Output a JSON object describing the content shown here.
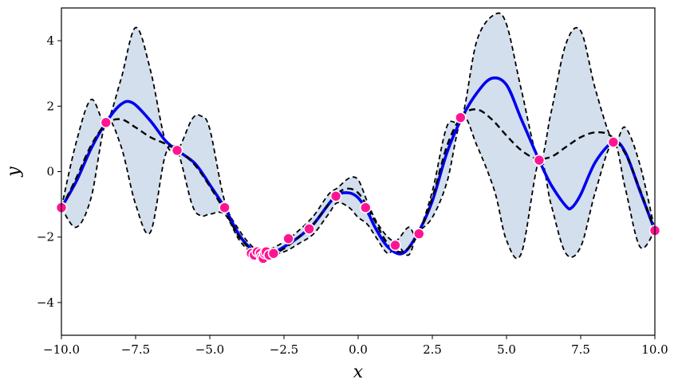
{
  "chart_data": {
    "type": "line",
    "xlabel": "x",
    "ylabel": "y",
    "xlim": [
      -10,
      10
    ],
    "ylim": [
      -5,
      5
    ],
    "xticks": [
      -10,
      -7.5,
      -5,
      -2.5,
      0,
      2.5,
      5,
      7.5,
      10
    ],
    "xtick_labels": [
      "−10.0",
      "−7.5",
      "−5.0",
      "−2.5",
      "0.0",
      "2.5",
      "5.0",
      "7.5",
      "10.0"
    ],
    "yticks": [
      -4,
      -2,
      0,
      2,
      4
    ],
    "ytick_labels": [
      "−4",
      "−2",
      "0",
      "2",
      "4"
    ],
    "grid": false,
    "colors": {
      "mean": "#0000ee",
      "true_function": "#000000",
      "confidence_band": "#d3dfec",
      "observations": "#ff1493",
      "observation_edge": "#ffffff"
    },
    "series": [
      {
        "role": "posterior-mean",
        "style": "solid",
        "x": [
          -10,
          -9.5,
          -9,
          -8.5,
          -8,
          -7.6,
          -7,
          -6.5,
          -6.1,
          -5.5,
          -5,
          -4.5,
          -4,
          -3.5,
          -3.2,
          -3,
          -2.5,
          -2,
          -1.5,
          -1,
          -0.7,
          -0.3,
          0,
          0.3,
          0.6,
          1,
          1.5,
          2,
          2.5,
          3,
          3.5,
          4,
          4.5,
          5,
          5.5,
          6.1,
          6.5,
          7,
          7.2,
          7.5,
          8,
          8.6,
          9,
          9.5,
          10
        ],
        "y": [
          -1.1,
          -0.3,
          0.7,
          1.5,
          2.05,
          2.1,
          1.55,
          0.95,
          0.65,
          0.25,
          -0.4,
          -1.1,
          -1.95,
          -2.45,
          -2.55,
          -2.55,
          -2.3,
          -2.0,
          -1.6,
          -1.0,
          -0.7,
          -0.65,
          -0.8,
          -1.2,
          -1.75,
          -2.3,
          -2.5,
          -1.9,
          -0.9,
          0.6,
          1.65,
          2.4,
          2.85,
          2.65,
          1.6,
          0.35,
          -0.4,
          -1.05,
          -1.1,
          -0.7,
          0.3,
          0.9,
          0.6,
          -0.6,
          -1.8
        ]
      },
      {
        "role": "true-function",
        "style": "dashed",
        "x": [
          -10,
          -9.5,
          -9,
          -8.5,
          -8,
          -7.5,
          -7,
          -6.5,
          -6,
          -5.5,
          -5,
          -4.5,
          -4,
          -3.5,
          -3,
          -2.5,
          -2,
          -1.5,
          -1,
          -0.5,
          0,
          0.5,
          1,
          1.5,
          2,
          2.5,
          3,
          3.5,
          4,
          4.5,
          5,
          5.5,
          6,
          6.5,
          7,
          7.5,
          8,
          8.5,
          9,
          9.5,
          10
        ],
        "y": [
          -1.1,
          -0.2,
          0.8,
          1.45,
          1.6,
          1.35,
          1.05,
          0.85,
          0.6,
          0.2,
          -0.45,
          -1.2,
          -2.0,
          -2.45,
          -2.55,
          -2.35,
          -2.0,
          -1.6,
          -1.0,
          -0.55,
          -0.65,
          -1.4,
          -2.2,
          -2.45,
          -1.95,
          -0.8,
          0.8,
          1.7,
          1.9,
          1.6,
          1.1,
          0.65,
          0.4,
          0.45,
          0.75,
          1.05,
          1.2,
          1.1,
          0.55,
          -0.55,
          -1.8
        ]
      }
    ],
    "confidence_band": {
      "x": [
        -10,
        -9.5,
        -9,
        -8.5,
        -8,
        -7.5,
        -7,
        -6.5,
        -6.1,
        -5.6,
        -5.3,
        -5,
        -4.5,
        -4,
        -3.5,
        -3.2,
        -2.5,
        -2,
        -1.5,
        -1,
        -0.7,
        -0.3,
        0,
        0.3,
        0.6,
        1,
        1.3,
        1.7,
        2,
        2.5,
        3,
        3.5,
        4,
        4.6,
        5,
        5.5,
        6.1,
        6.5,
        7,
        7.5,
        8,
        8.6,
        9,
        9.5,
        10
      ],
      "upper": [
        -1.1,
        0.9,
        2.2,
        1.5,
        2.8,
        4.4,
        3.1,
        0.95,
        0.65,
        1.6,
        1.7,
        1.3,
        -0.9,
        -1.8,
        -2.35,
        -2.45,
        -2.15,
        -1.8,
        -1.35,
        -0.7,
        -0.5,
        -0.2,
        -0.25,
        -0.9,
        -1.5,
        -2.0,
        -2.1,
        -1.7,
        -1.9,
        -0.6,
        1.4,
        1.65,
        4.0,
        4.8,
        4.5,
        2.5,
        0.35,
        1.8,
        3.9,
        4.3,
        2.5,
        0.9,
        1.35,
        0.2,
        -1.8
      ],
      "lower": [
        -1.1,
        -1.7,
        -0.8,
        1.5,
        0.8,
        -1.0,
        -1.85,
        0.5,
        0.65,
        -1.0,
        -1.35,
        -1.3,
        -1.3,
        -2.1,
        -2.55,
        -2.6,
        -2.45,
        -2.2,
        -1.9,
        -1.3,
        -0.95,
        -1.1,
        -1.4,
        -1.6,
        -2.0,
        -2.5,
        -2.25,
        -2.55,
        -1.9,
        -1.4,
        -0.3,
        1.65,
        0.8,
        -0.6,
        -2.1,
        -2.5,
        0.35,
        -1.0,
        -2.5,
        -2.3,
        -0.6,
        0.9,
        -0.5,
        -2.3,
        -1.8
      ]
    },
    "observations": {
      "x": [
        -10.0,
        -8.5,
        -6.1,
        -4.5,
        -3.6,
        -3.5,
        -3.4,
        -3.3,
        -3.25,
        -3.2,
        -3.15,
        -3.1,
        -3.0,
        -2.85,
        -2.35,
        -1.65,
        -0.75,
        0.25,
        1.25,
        2.05,
        3.45,
        6.1,
        8.6,
        10.0
      ],
      "y": [
        -1.1,
        1.5,
        0.65,
        -1.1,
        -2.5,
        -2.55,
        -2.45,
        -2.5,
        -2.6,
        -2.65,
        -2.5,
        -2.45,
        -2.55,
        -2.5,
        -2.05,
        -1.75,
        -0.75,
        -1.1,
        -2.25,
        -1.9,
        1.65,
        0.35,
        0.9,
        -1.8
      ]
    }
  }
}
